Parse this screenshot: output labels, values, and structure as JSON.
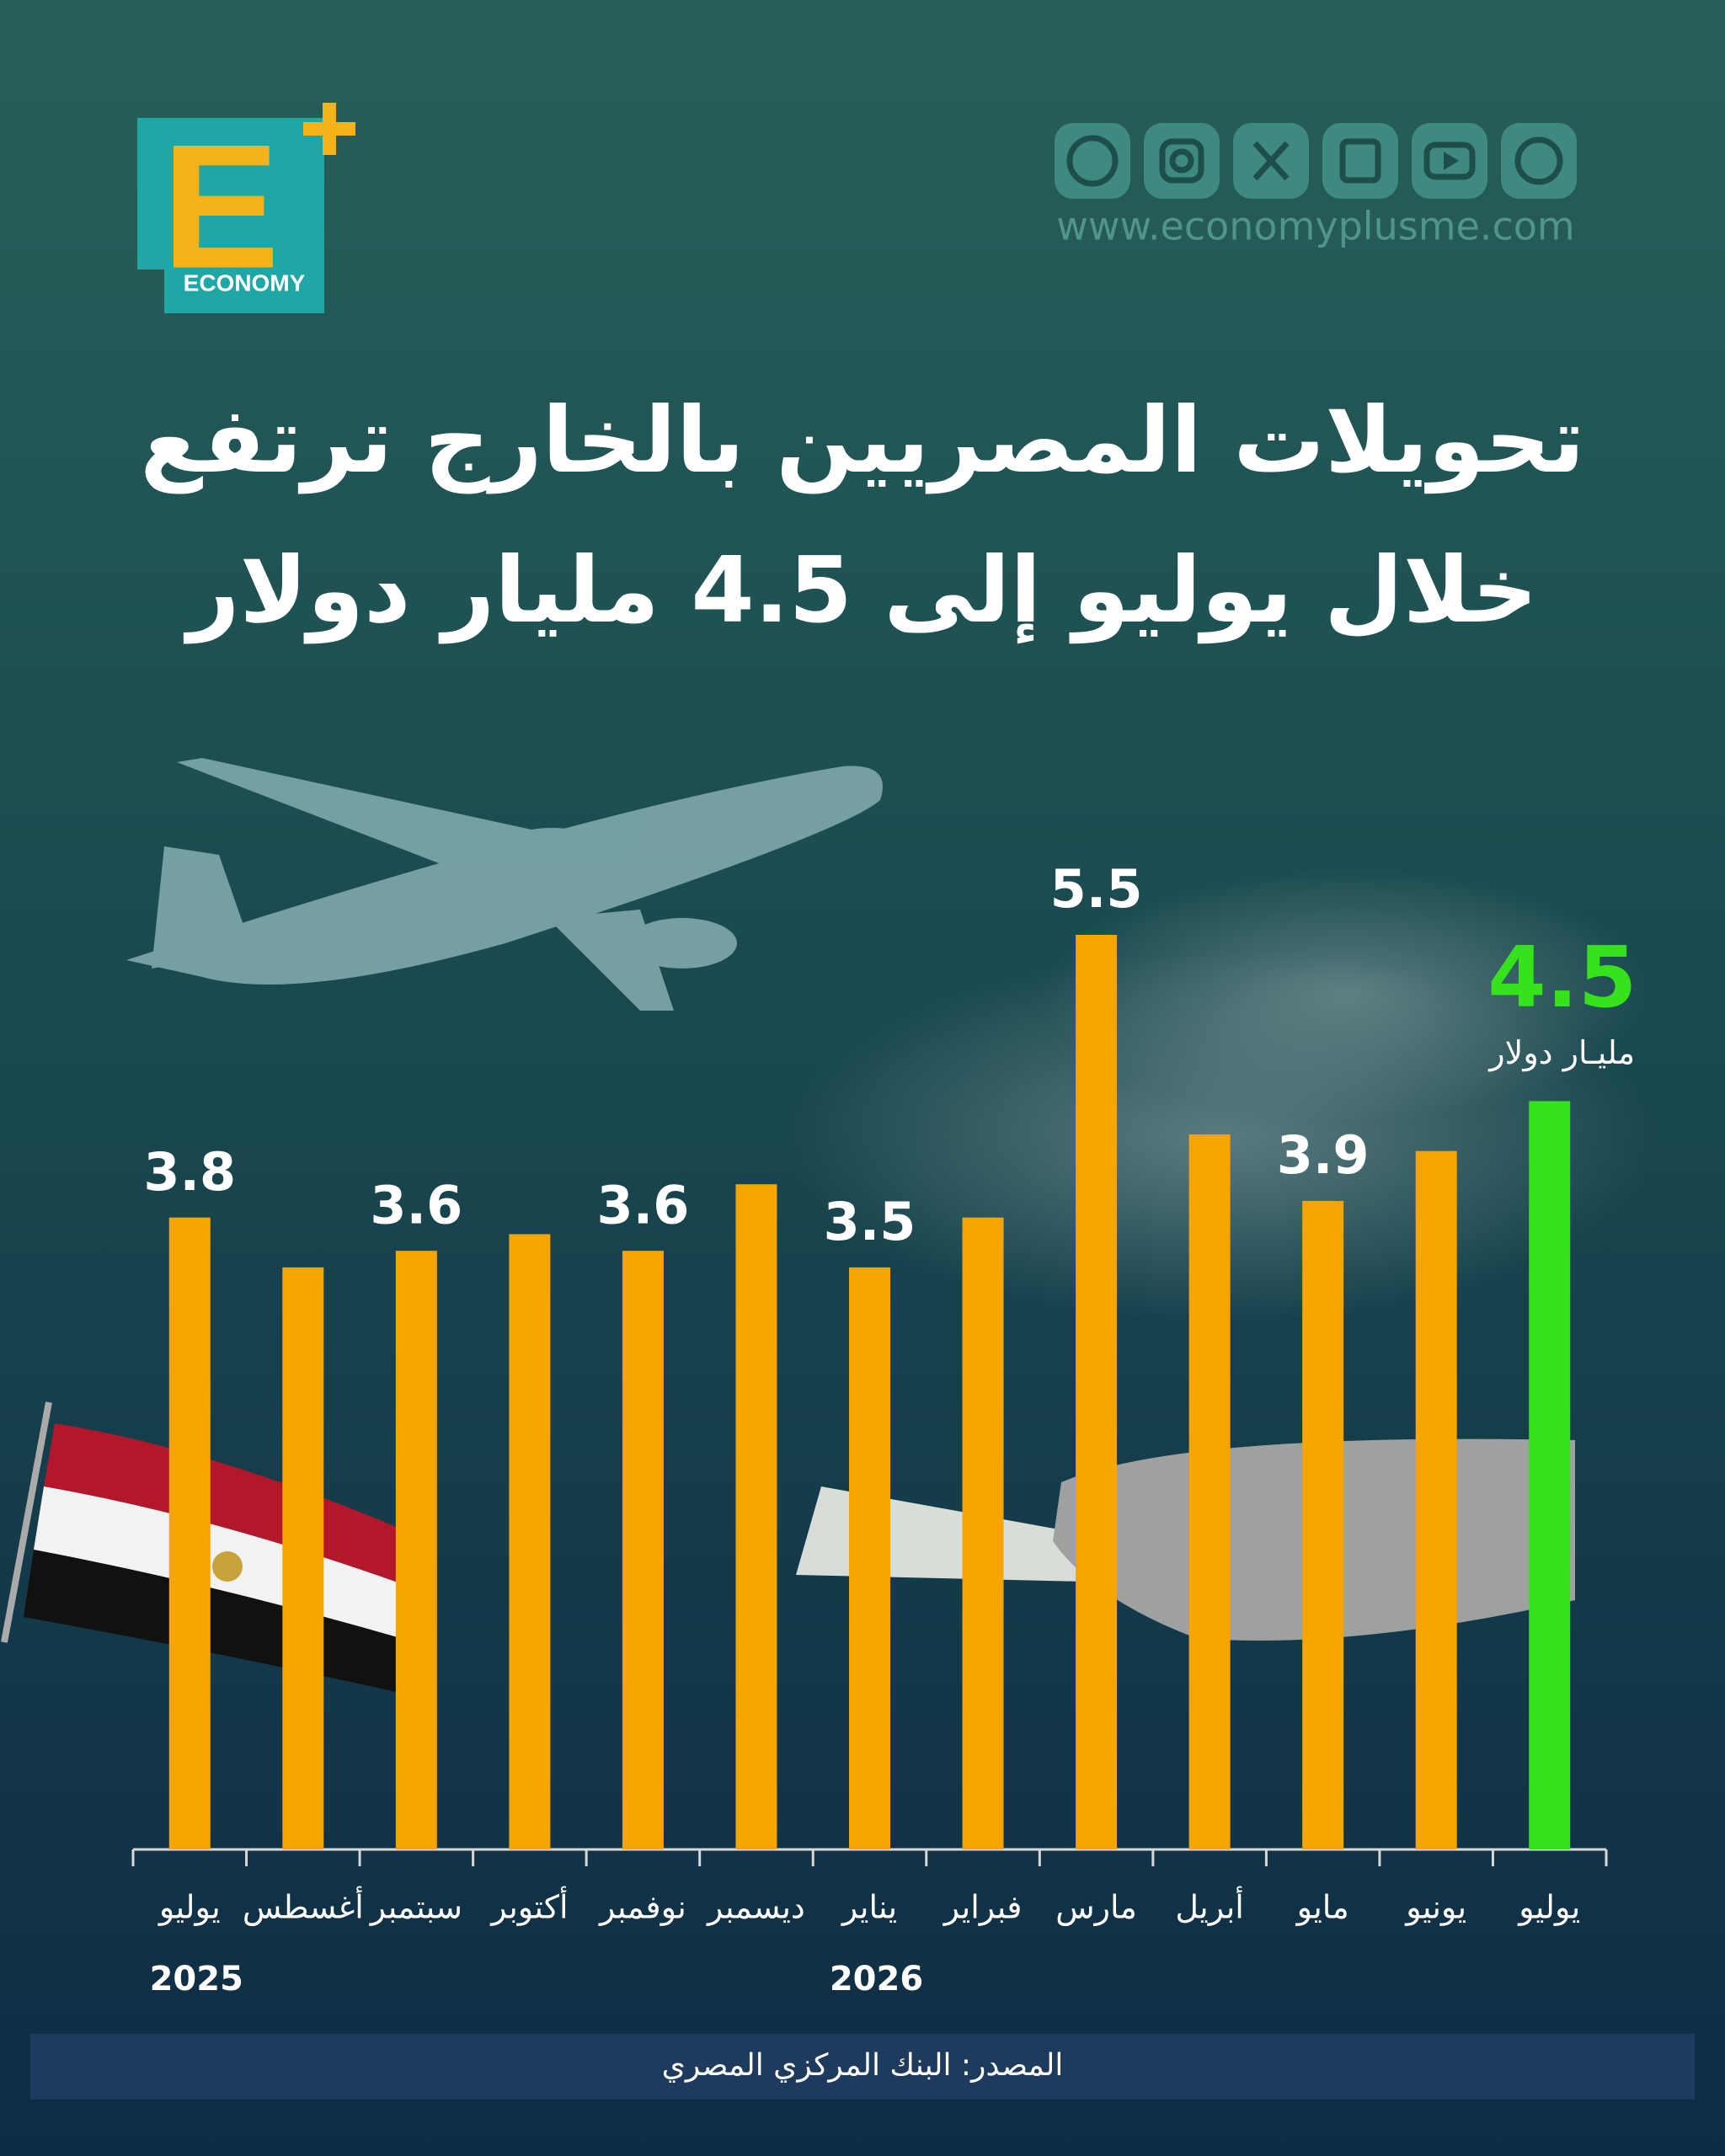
{
  "brand": {
    "letter": "E",
    "word": "ECONOMY",
    "website": "www.economyplusme.com"
  },
  "chart_data": {
    "type": "bar",
    "title": [
      "تحويلات المصريين بالخارج ترتفع",
      "خلال يوليو إلى 4.5 مليار دولار"
    ],
    "categories": [
      "يوليو",
      "أغسطس",
      "سبتمبر",
      "أكتوبر",
      "نوفمبر",
      "ديسمبر",
      "يناير",
      "فبراير",
      "مارس",
      "أبريل",
      "مايو",
      "يونيو",
      "يوليو"
    ],
    "category_groups": [
      "2025",
      null,
      null,
      null,
      null,
      null,
      "2026",
      null,
      null,
      null,
      null,
      null,
      null
    ],
    "values": [
      3.8,
      3.5,
      3.6,
      3.7,
      3.6,
      4.0,
      3.5,
      3.8,
      5.5,
      4.3,
      3.9,
      4.2,
      4.5
    ],
    "value_labels": [
      "3.8",
      null,
      "3.6",
      null,
      "3.6",
      null,
      "3.5",
      null,
      "5.5",
      null,
      "3.9",
      null,
      "4.5"
    ],
    "colors": [
      "#f5a400",
      "#f5a400",
      "#f5a400",
      "#f5a400",
      "#f5a400",
      "#f5a400",
      "#f5a400",
      "#f5a400",
      "#f5a400",
      "#f5a400",
      "#f5a400",
      "#f5a400",
      "#35e21c"
    ],
    "highlight_unit": "مليـار دولار",
    "ylim": [
      0,
      5.5
    ],
    "source": "المصدر: البنك المركزي المصري"
  }
}
